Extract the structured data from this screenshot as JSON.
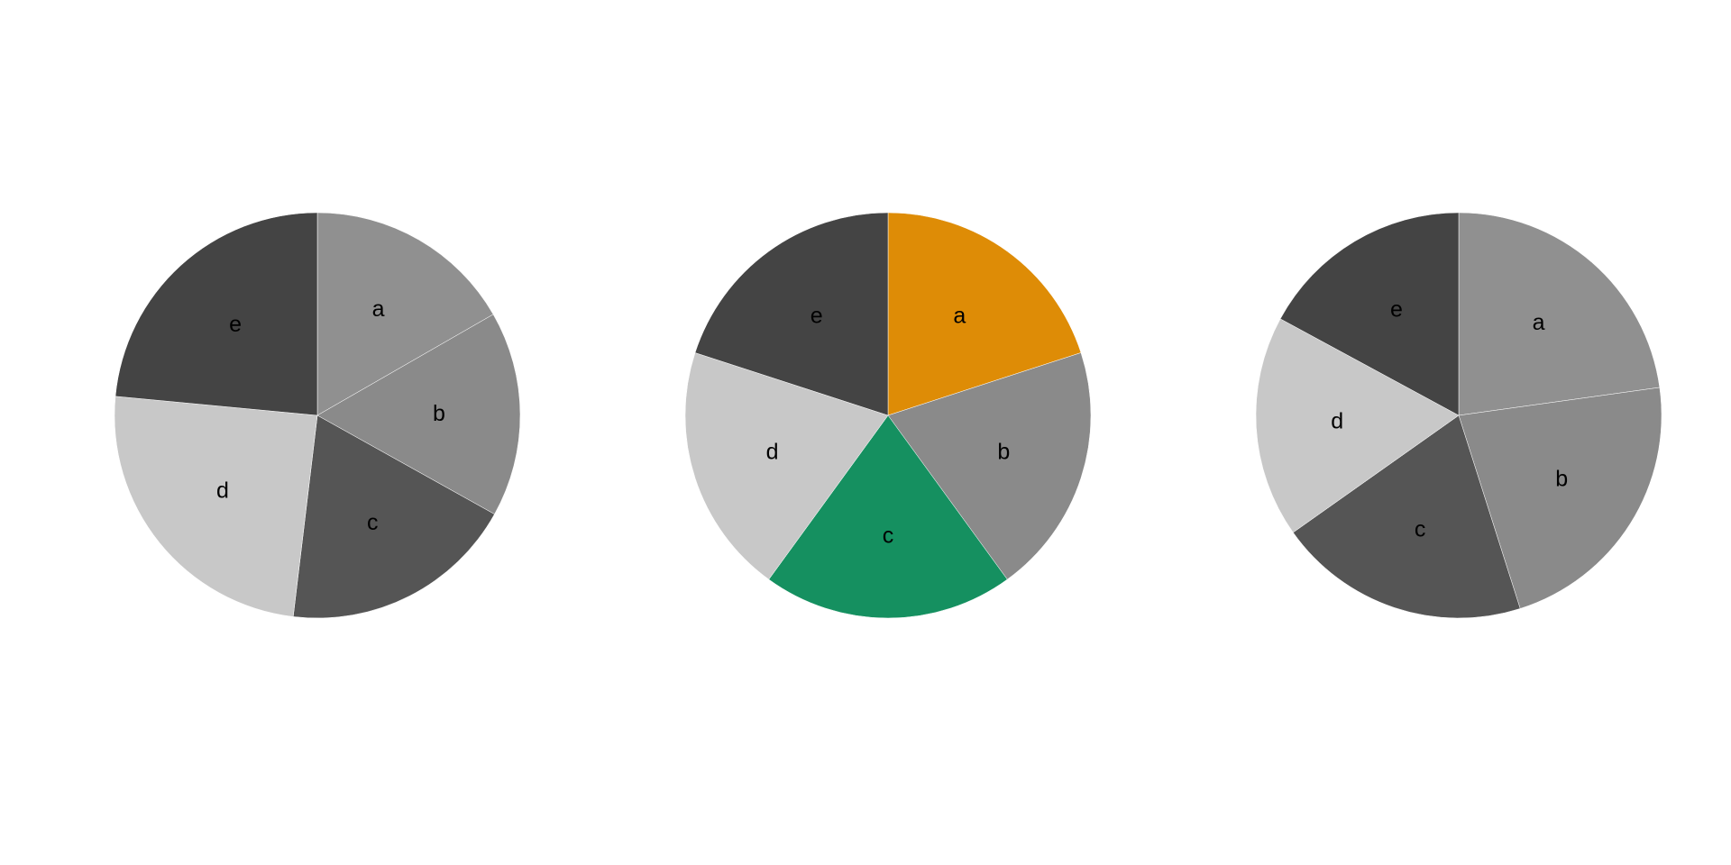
{
  "chart_data": [
    {
      "type": "pie",
      "labels": [
        "a",
        "b",
        "c",
        "d",
        "e"
      ],
      "values": [
        16.7,
        16.4,
        18.8,
        24.6,
        23.5
      ],
      "colors": [
        "#909090",
        "#8a8a8a",
        "#555555",
        "#c8c8c8",
        "#444444"
      ],
      "start_angle": 90,
      "direction": "clockwise"
    },
    {
      "type": "pie",
      "labels": [
        "a",
        "b",
        "c",
        "d",
        "e"
      ],
      "values": [
        20,
        20,
        20,
        20,
        20
      ],
      "colors": [
        "#de8c06",
        "#8a8a8a",
        "#159060",
        "#c8c8c8",
        "#444444"
      ],
      "start_angle": 90,
      "direction": "clockwise"
    },
    {
      "type": "pie",
      "labels": [
        "a",
        "b",
        "c",
        "d",
        "e"
      ],
      "values": [
        22.8,
        22.3,
        20.1,
        17.7,
        17.1
      ],
      "colors": [
        "#909090",
        "#8a8a8a",
        "#555555",
        "#c8c8c8",
        "#444444"
      ],
      "start_angle": 90,
      "direction": "clockwise"
    }
  ]
}
